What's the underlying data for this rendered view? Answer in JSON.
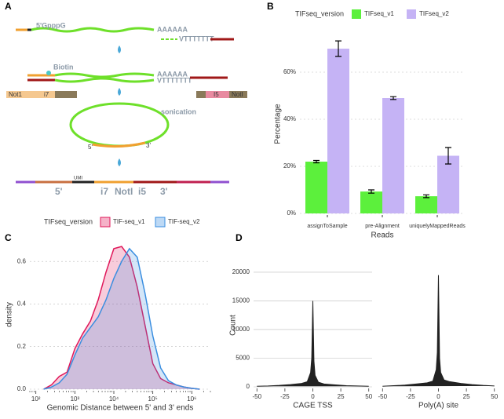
{
  "panels": [
    "A",
    "B",
    "C",
    "D"
  ],
  "diagram": {
    "labels": [
      "5'GpppG",
      "AAAAAA",
      "VTTTTTTT",
      "Biotin",
      "AAAAAA",
      "VTTTTTTT",
      "Not1",
      "i7",
      "I5",
      "NotI",
      "sonication",
      "5'",
      "3'",
      "UMI",
      "5'",
      "i7",
      "NotI",
      "i5",
      "3'"
    ]
  },
  "chart_data": [
    {
      "type": "bar",
      "legend_title": "TIFseq_version",
      "categories": [
        "assignToSample",
        "pre-Alignment",
        "uniquelyMappedReads"
      ],
      "series": [
        {
          "name": "TIFseq_v1",
          "color": "#5cf03c",
          "values": [
            22,
            9.3,
            7.3
          ],
          "errors": [
            0.5,
            0.7,
            0.6
          ]
        },
        {
          "name": "TIFseq_v2",
          "color": "#c5b3f5",
          "values": [
            70,
            49,
            24.5
          ],
          "errors": [
            3.3,
            0.6,
            3.5
          ]
        }
      ],
      "ylim": [
        0,
        76
      ],
      "yticks": [
        {
          "value": 0,
          "label": "0%"
        },
        {
          "value": 20,
          "label": "20%"
        },
        {
          "value": 40,
          "label": "40%"
        },
        {
          "value": 60,
          "label": "60%"
        }
      ],
      "xlabel": "Reads",
      "ylabel": "Percentage",
      "grid": true
    },
    {
      "type": "density",
      "legend_title": "TIFseq_version",
      "xscale": "log",
      "x": [
        158,
        251,
        398,
        631,
        1000,
        1585,
        2512,
        3981,
        6310,
        10000,
        15849,
        25119,
        39811,
        63096,
        100000,
        158489,
        251189,
        398107,
        630957,
        1000000,
        1584893
      ],
      "series": [
        {
          "name": "TIF-seq_v1",
          "color": "#e0185a",
          "values": [
            0.0,
            0.02,
            0.06,
            0.08,
            0.19,
            0.26,
            0.32,
            0.42,
            0.55,
            0.66,
            0.67,
            0.62,
            0.48,
            0.3,
            0.12,
            0.05,
            0.03,
            0.02,
            0.01,
            0.004,
            0.0
          ]
        },
        {
          "name": "TIF-seq_v2",
          "color": "#3a8ee0",
          "values": [
            0.0,
            0.01,
            0.03,
            0.07,
            0.16,
            0.24,
            0.29,
            0.34,
            0.42,
            0.52,
            0.6,
            0.66,
            0.62,
            0.45,
            0.25,
            0.1,
            0.04,
            0.02,
            0.01,
            0.004,
            0.0
          ]
        }
      ],
      "xlim": [
        70,
        3000000
      ],
      "xticks": [
        {
          "value": 100,
          "label": "10²"
        },
        {
          "value": 1000,
          "label": "10³"
        },
        {
          "value": 10000,
          "label": "10⁴"
        },
        {
          "value": 100000,
          "label": "10⁵"
        },
        {
          "value": 1000000,
          "label": "10⁶"
        }
      ],
      "ylim": [
        0,
        0.7
      ],
      "yticks": [
        {
          "value": 0,
          "label": "0.0"
        },
        0.2,
        0.4,
        0.6
      ],
      "xlabel": "Genomic Distance between 5' and 3' ends",
      "ylabel": "density",
      "grid": true
    },
    {
      "type": "area",
      "color": "#222222",
      "x": [
        -50,
        -40,
        -30,
        -20,
        -10,
        -5,
        -2,
        -1,
        0,
        1,
        2,
        5,
        10,
        20,
        30,
        40,
        50
      ],
      "values": [
        100,
        150,
        250,
        400,
        600,
        900,
        2500,
        5000,
        15000,
        4500,
        2000,
        800,
        500,
        350,
        200,
        150,
        100
      ],
      "xlim": [
        -53,
        53
      ],
      "xticks": [
        -50,
        -25,
        0,
        25,
        50
      ],
      "ylim": [
        0,
        21500
      ],
      "yticks": [
        0,
        5000,
        10000,
        15000,
        20000
      ],
      "xlabel": "CAGE TSS",
      "ylabel": "Count",
      "grid": true
    },
    {
      "type": "area",
      "color": "#222222",
      "x": [
        -50,
        -40,
        -30,
        -20,
        -10,
        -5,
        -2,
        -1,
        0,
        1,
        2,
        5,
        10,
        20,
        30,
        40,
        50
      ],
      "values": [
        100,
        200,
        300,
        500,
        700,
        1000,
        3000,
        6000,
        19500,
        5000,
        2500,
        1200,
        900,
        600,
        400,
        250,
        150
      ],
      "xlim": [
        -53,
        53
      ],
      "xticks": [
        -50,
        -25,
        0,
        25,
        50
      ],
      "ylim": [
        0,
        21500
      ],
      "xlabel": "Poly(A) site",
      "grid": true
    }
  ]
}
